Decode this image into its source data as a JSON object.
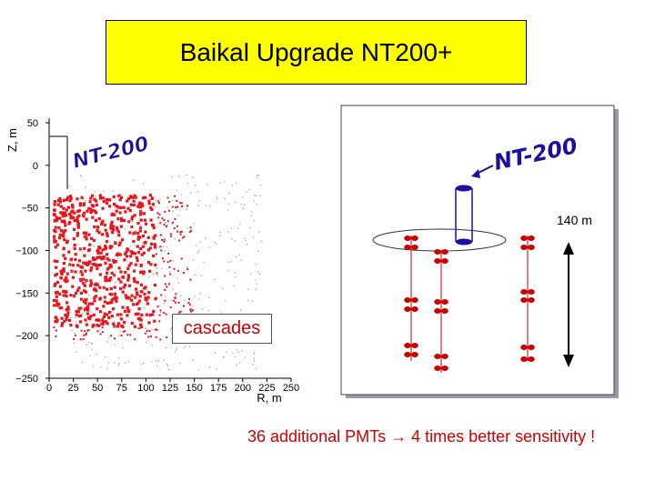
{
  "title": "Baikal Upgrade NT200+",
  "chart_data": {
    "type": "scatter",
    "xlabel": "R, m",
    "ylabel": "Z, m",
    "xlim": [
      0,
      250
    ],
    "ylim": [
      -250,
      50
    ],
    "x_ticks": [
      "0",
      "25",
      "50",
      "75",
      "100",
      "125",
      "150",
      "175",
      "200",
      "225",
      "250"
    ],
    "y_ticks": [
      "50",
      "0",
      "−50",
      "−100",
      "−150",
      "−200",
      "−250"
    ],
    "series": [
      {
        "color": "#e8151b",
        "description": "cascade events densely distributed, R 5–150 m, Z −35 to −205 m"
      }
    ],
    "annotation": "cascades",
    "overlay_label": "NT-200"
  },
  "detector": {
    "label": "NT-200",
    "distance_label": "140 m"
  },
  "caption": "36 additional PMTs → 4 times better sensitivity !",
  "colors": {
    "title_bg": "#ffff00",
    "points": "#e8151b",
    "strings": "#cc0000",
    "label": "#1b0fa0"
  }
}
